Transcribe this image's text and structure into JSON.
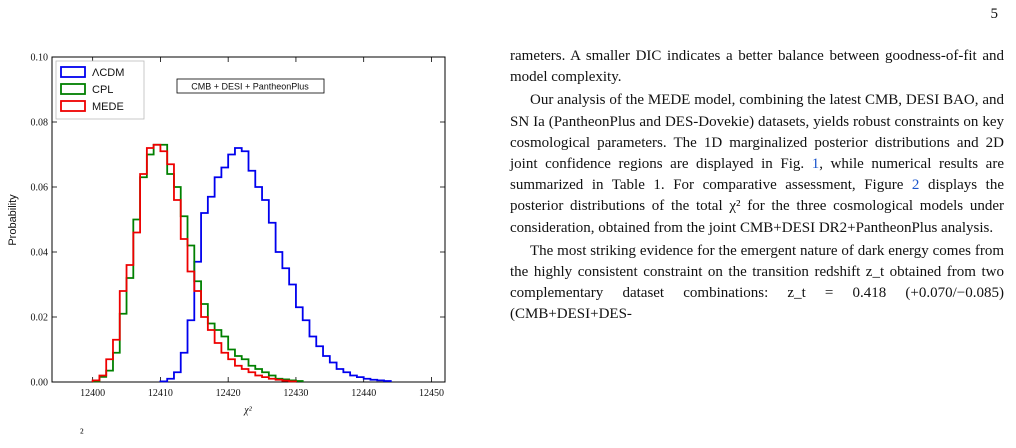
{
  "page_number": "5",
  "chart_data": {
    "type": "step-histogram",
    "xlabel": "χ²",
    "ylabel": "Probability",
    "xlim": [
      12394,
      12452
    ],
    "ylim": [
      0,
      0.1
    ],
    "x_ticks": [
      12400,
      12410,
      12420,
      12430,
      12440,
      12450
    ],
    "y_ticks": [
      0.0,
      0.02,
      0.04,
      0.06,
      0.08,
      0.1
    ],
    "y_tick_labels": [
      "0.00",
      "0.02",
      "0.04",
      "0.06",
      "0.08",
      "0.10"
    ],
    "annotation": "CMB + DESI + PantheonPlus",
    "legend_position": "top-left",
    "bin_width": 1,
    "series": [
      {
        "name": "ΛCDM",
        "color": "#0000ee",
        "start": 12410,
        "values": [
          0.0002,
          0.001,
          0.003,
          0.009,
          0.019,
          0.037,
          0.052,
          0.057,
          0.063,
          0.066,
          0.07,
          0.072,
          0.071,
          0.065,
          0.06,
          0.056,
          0.049,
          0.04,
          0.035,
          0.03,
          0.023,
          0.019,
          0.014,
          0.011,
          0.008,
          0.006,
          0.004,
          0.003,
          0.002,
          0.0015,
          0.001,
          0.0007,
          0.0005,
          0.0003
        ]
      },
      {
        "name": "CPL",
        "color": "#008000",
        "start": 12400,
        "values": [
          0.0002,
          0.0016,
          0.0035,
          0.009,
          0.021,
          0.032,
          0.05,
          0.063,
          0.07,
          0.073,
          0.073,
          0.064,
          0.06,
          0.051,
          0.042,
          0.031,
          0.024,
          0.018,
          0.016,
          0.014,
          0.01,
          0.008,
          0.007,
          0.005,
          0.004,
          0.003,
          0.002,
          0.001,
          0.0008,
          0.0005,
          0.0003
        ]
      },
      {
        "name": "MEDE",
        "color": "#ee0000",
        "start": 12400,
        "values": [
          0.0005,
          0.002,
          0.007,
          0.013,
          0.028,
          0.036,
          0.046,
          0.064,
          0.072,
          0.073,
          0.071,
          0.067,
          0.056,
          0.044,
          0.034,
          0.028,
          0.02,
          0.016,
          0.012,
          0.009,
          0.007,
          0.005,
          0.004,
          0.003,
          0.002,
          0.0015,
          0.001,
          0.0007,
          0.0004,
          0.0002
        ]
      }
    ]
  },
  "caption_fragment": "²",
  "text": {
    "p1": "rameters. A smaller DIC indicates a better balance between goodness-of-fit and model complexity.",
    "p2_a": "Our analysis of the MEDE model, combining the latest CMB, DESI BAO, and SN Ia (PantheonPlus and DES-Dovekie) datasets, yields robust constraints on key cosmological parameters. The 1D marginalized posterior distributions and 2D joint confidence regions are displayed in Fig. ",
    "p2_ref1": "1",
    "p2_b": ", while numerical results are summarized in Table 1. For comparative assessment, Figure ",
    "p2_ref2": "2",
    "p2_c": " displays the posterior distributions of the total χ² for the three cosmological models under consideration, obtained from the joint CMB+DESI DR2+PantheonPlus analysis.",
    "p3": "The most striking evidence for the emergent nature of dark energy comes from the highly consistent constraint on the transition redshift z_t obtained from two complementary dataset combinations: z_t = 0.418 (+0.070/−0.085) (CMB+DESI+DES-"
  }
}
